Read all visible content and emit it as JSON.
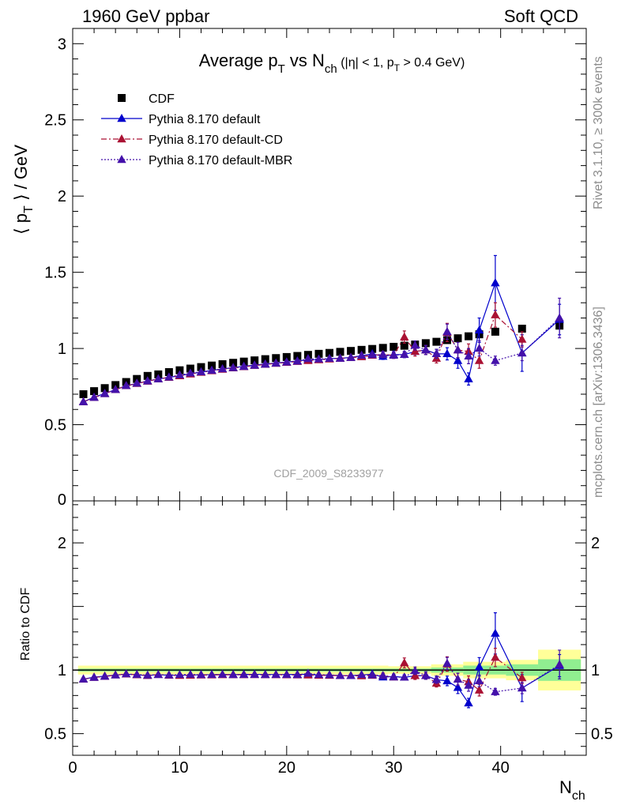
{
  "header": {
    "left": "1960 GeV ppbar",
    "right": "Soft QCD"
  },
  "side": {
    "rivet": "Rivet 3.1.10, ≥ 300k events",
    "mcplots": "mcplots.cern.ch [arXiv:1306.3436]"
  },
  "chart_data": {
    "type": "scatter",
    "title": {
      "main": "Average p",
      "sub_T": "T",
      "vs": " vs N",
      "sub_ch": "ch",
      "cut1": " (|η| < 1, p",
      "cut_T": "T",
      "cut2": " > 0.4 GeV)"
    },
    "watermark": "CDF_2009_S8233977",
    "ylabel": {
      "open": "⟨ p",
      "sub": "T",
      "close": " ⟩ / GeV"
    },
    "ratio_ylabel": "Ratio to CDF",
    "xlabel": {
      "main": "N",
      "sub": "ch"
    },
    "xlim": [
      0,
      48
    ],
    "ylim": [
      0,
      3.1
    ],
    "ratio_ylim": [
      0.33,
      2.33
    ],
    "x_ticks": [
      "0",
      "10",
      "20",
      "30",
      "40"
    ],
    "y_ticks": [
      "0.5",
      "1",
      "1.5",
      "2",
      "2.5",
      "3"
    ],
    "y_tick_zero": "0",
    "ratio_y_ticks": [
      "0.5",
      "1",
      "2"
    ],
    "legend_position": "top-left",
    "reference": {
      "name": "CDF",
      "color": "#000000",
      "x": [
        1,
        2,
        3,
        4,
        5,
        6,
        7,
        8,
        9,
        10,
        11,
        12,
        13,
        14,
        15,
        16,
        17,
        18,
        19,
        20,
        21,
        22,
        23,
        24,
        25,
        26,
        27,
        28,
        29,
        30,
        31,
        32,
        33,
        34,
        35,
        36,
        37,
        38,
        39.5,
        42,
        45.5
      ],
      "y": [
        0.7,
        0.72,
        0.74,
        0.76,
        0.78,
        0.8,
        0.82,
        0.83,
        0.845,
        0.857,
        0.868,
        0.878,
        0.888,
        0.897,
        0.906,
        0.914,
        0.922,
        0.93,
        0.937,
        0.944,
        0.951,
        0.958,
        0.965,
        0.971,
        0.978,
        0.984,
        0.991,
        0.997,
        1.004,
        1.011,
        1.018,
        1.026,
        1.035,
        1.044,
        1.055,
        1.067,
        1.08,
        1.093,
        1.11,
        1.13,
        1.15
      ]
    },
    "series": [
      {
        "name": "Pythia 8.170 default",
        "color": "#0000cc",
        "dash": "",
        "x": [
          1,
          2,
          3,
          4,
          5,
          6,
          7,
          8,
          9,
          10,
          11,
          12,
          13,
          14,
          15,
          16,
          17,
          18,
          19,
          20,
          21,
          22,
          23,
          24,
          25,
          26,
          27,
          28,
          29,
          30,
          31,
          32,
          33,
          34,
          35,
          36,
          37,
          38,
          39.5,
          42,
          45.5
        ],
        "y": [
          0.65,
          0.68,
          0.705,
          0.73,
          0.755,
          0.77,
          0.785,
          0.8,
          0.81,
          0.822,
          0.834,
          0.845,
          0.856,
          0.866,
          0.874,
          0.883,
          0.891,
          0.898,
          0.904,
          0.911,
          0.918,
          0.926,
          0.927,
          0.933,
          0.936,
          0.941,
          0.952,
          0.965,
          0.948,
          0.96,
          0.96,
          0.98,
          0.99,
          0.965,
          0.965,
          0.92,
          0.8,
          1.12,
          1.43,
          0.97,
          1.19
        ],
        "err": [
          0,
          0,
          0,
          0,
          0,
          0,
          0,
          0,
          0,
          0,
          0,
          0,
          0,
          0,
          0,
          0,
          0,
          0,
          0,
          0,
          0,
          0,
          0,
          0,
          0,
          0,
          0,
          0,
          0.02,
          0.02,
          0.02,
          0.02,
          0.03,
          0.03,
          0.04,
          0.05,
          0.04,
          0.08,
          0.18,
          0.12,
          0.1
        ]
      },
      {
        "name": "Pythia 8.170 default-CD",
        "color": "#aa1133",
        "dash": "7,3,2,3",
        "x": [
          1,
          2,
          3,
          4,
          5,
          6,
          7,
          8,
          9,
          10,
          11,
          12,
          13,
          14,
          15,
          16,
          17,
          18,
          19,
          20,
          21,
          22,
          23,
          24,
          25,
          26,
          27,
          28,
          29,
          30,
          31,
          32,
          33,
          34,
          35,
          36,
          37,
          38,
          39.5,
          42
        ],
        "y": [
          0.65,
          0.678,
          0.703,
          0.73,
          0.755,
          0.77,
          0.785,
          0.8,
          0.81,
          0.82,
          0.832,
          0.843,
          0.853,
          0.863,
          0.872,
          0.88,
          0.888,
          0.895,
          0.902,
          0.908,
          0.914,
          0.92,
          0.925,
          0.93,
          0.935,
          0.94,
          0.945,
          0.955,
          0.96,
          0.955,
          1.075,
          0.98,
          0.99,
          0.935,
          1.105,
          0.99,
          0.98,
          0.92,
          1.22,
          1.06
        ],
        "err": [
          0,
          0,
          0,
          0,
          0,
          0,
          0,
          0,
          0,
          0,
          0,
          0,
          0,
          0,
          0,
          0,
          0,
          0,
          0,
          0,
          0,
          0,
          0,
          0,
          0,
          0,
          0,
          0,
          0.02,
          0.02,
          0.04,
          0.03,
          0.03,
          0.03,
          0.06,
          0.05,
          0.05,
          0.05,
          0.08,
          0.05
        ]
      },
      {
        "name": "Pythia 8.170 default-MBR",
        "color": "#4411aa",
        "dash": "2,2",
        "x": [
          1,
          2,
          3,
          4,
          5,
          6,
          7,
          8,
          9,
          10,
          11,
          12,
          13,
          14,
          15,
          16,
          17,
          18,
          19,
          20,
          21,
          22,
          23,
          24,
          25,
          26,
          27,
          28,
          29,
          30,
          31,
          32,
          33,
          34,
          35,
          36,
          37,
          38,
          39.5,
          42,
          45.5
        ],
        "y": [
          0.65,
          0.678,
          0.703,
          0.73,
          0.756,
          0.772,
          0.787,
          0.8,
          0.812,
          0.826,
          0.838,
          0.846,
          0.856,
          0.866,
          0.873,
          0.881,
          0.889,
          0.896,
          0.903,
          0.91,
          0.916,
          0.933,
          0.93,
          0.934,
          0.935,
          0.94,
          0.955,
          0.958,
          0.96,
          0.955,
          0.96,
          1.02,
          0.99,
          0.965,
          1.11,
          0.99,
          0.95,
          1.0,
          0.92,
          0.97,
          1.2
        ],
        "err": [
          0,
          0,
          0,
          0,
          0,
          0,
          0,
          0,
          0,
          0,
          0,
          0,
          0,
          0,
          0,
          0,
          0,
          0,
          0,
          0,
          0,
          0,
          0,
          0,
          0,
          0,
          0,
          0,
          0.02,
          0.02,
          0.02,
          0.03,
          0.03,
          0.03,
          0.05,
          0.05,
          0.05,
          0.05,
          0.03,
          0.05,
          0.13
        ]
      }
    ],
    "ratio_bands": {
      "inner_color": "#90ee90",
      "outer_color": "#ffff99",
      "bins": [
        {
          "x0": 0.5,
          "x1": 29.5,
          "inner": 0.012,
          "outer": 0.035
        },
        {
          "x0": 29.5,
          "x1": 33.5,
          "inner": 0.012,
          "outer": 0.03
        },
        {
          "x0": 33.5,
          "x1": 36.5,
          "inner": 0.02,
          "outer": 0.045
        },
        {
          "x0": 36.5,
          "x1": 40.5,
          "inner": 0.035,
          "outer": 0.065
        },
        {
          "x0": 40.5,
          "x1": 43.5,
          "inner": 0.045,
          "outer": 0.08
        },
        {
          "x0": 43.5,
          "x1": 47.5,
          "inner": 0.085,
          "outer": 0.16
        }
      ]
    }
  }
}
